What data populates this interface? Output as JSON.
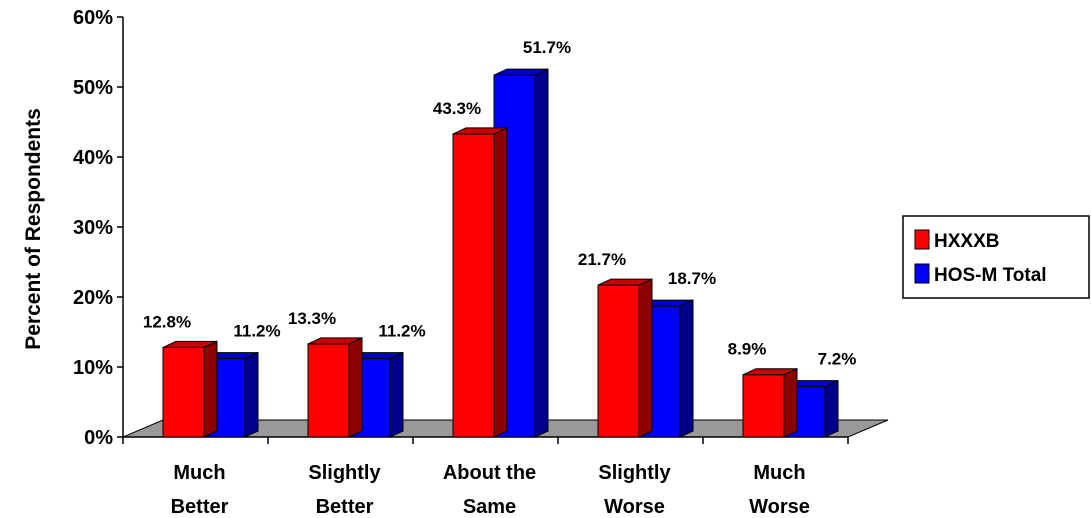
{
  "chart_data": {
    "type": "bar",
    "ylabel": "Percent of Respondents",
    "ylim": [
      0,
      60
    ],
    "yticks": [
      "0%",
      "10%",
      "20%",
      "30%",
      "40%",
      "50%",
      "60%"
    ],
    "categories": [
      [
        "Much",
        "Better"
      ],
      [
        "Slightly",
        "Better"
      ],
      [
        "About the",
        "Same"
      ],
      [
        "Slightly",
        "Worse"
      ],
      [
        "Much",
        "Worse"
      ]
    ],
    "series": [
      {
        "name": "HXXXB",
        "color": "#ff0000",
        "values": [
          12.8,
          13.3,
          43.3,
          21.7,
          8.9
        ],
        "labels": [
          "12.8%",
          "13.3%",
          "43.3%",
          "21.7%",
          "8.9%"
        ]
      },
      {
        "name": "HOS-M Total",
        "color": "#0000ff",
        "values": [
          11.2,
          11.2,
          51.7,
          18.7,
          7.2
        ],
        "labels": [
          "11.2%",
          "11.2%",
          "51.7%",
          "18.7%",
          "7.2%"
        ]
      }
    ],
    "grid": false,
    "legend": "right",
    "floor_color": "#999999"
  }
}
